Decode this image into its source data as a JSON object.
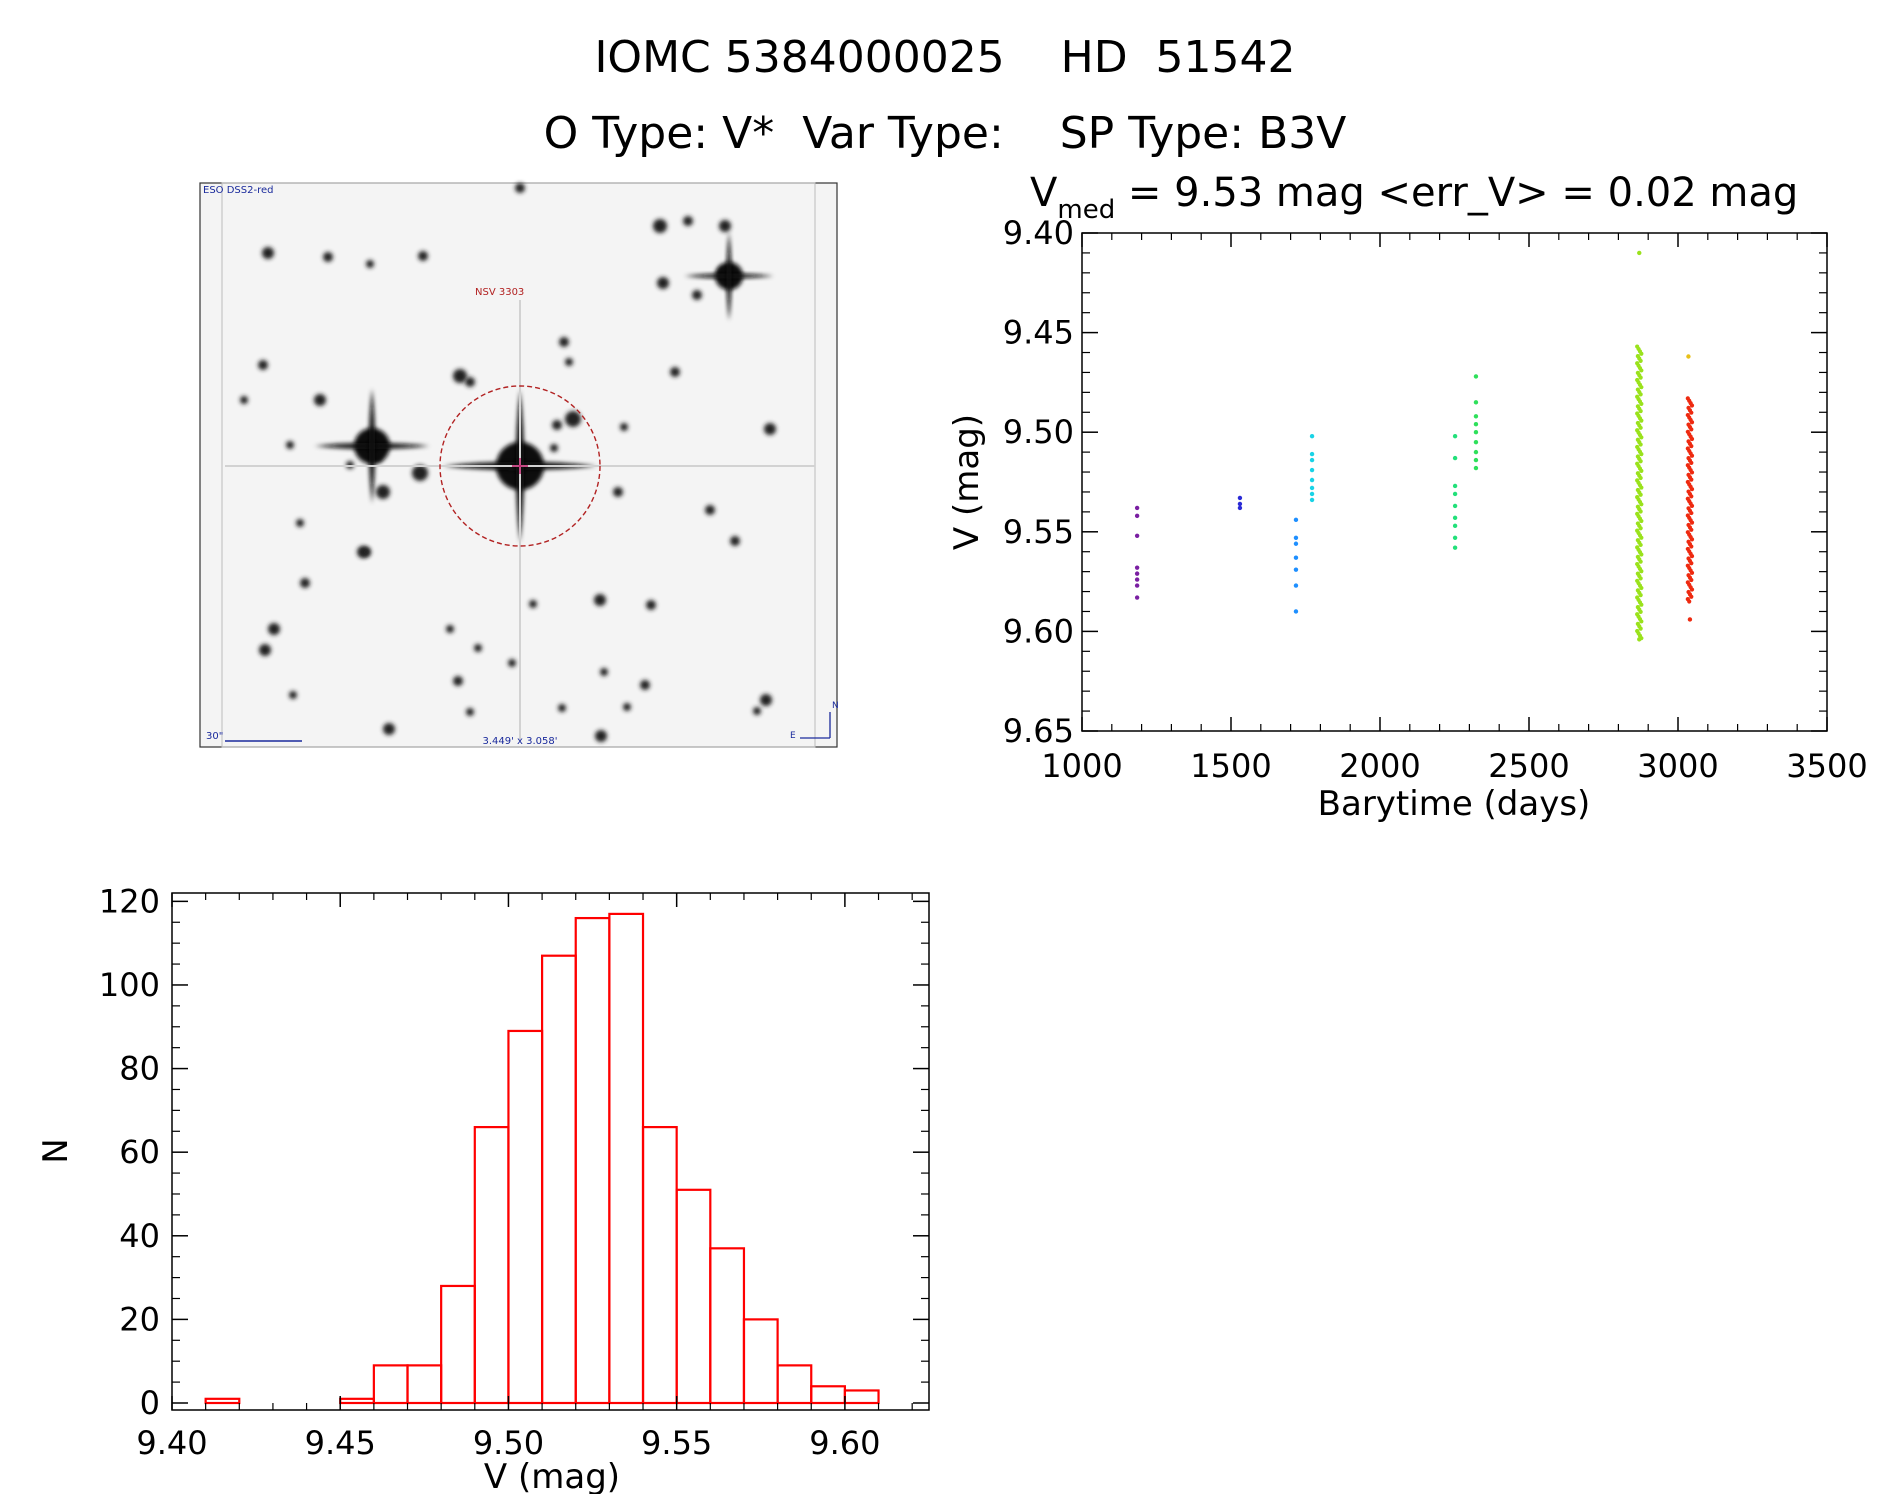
{
  "header": {
    "line1": "IOMC 5384000025    HD  51542",
    "line2": "O Type: V*  Var Type:    SP Type: B3V"
  },
  "finder": {
    "survey_label": "ESO DSS2-red",
    "target_label": "NSV 3303",
    "scale_label": "30\"",
    "fov_label": "3.449' x 3.058'",
    "north_label": "N",
    "east_label": "E"
  },
  "chart_data": [
    {
      "type": "scatter",
      "title_prefix": "V",
      "title_subscript": "med",
      "title_rest": " = 9.53 mag <err_V> = 0.02 mag",
      "xlabel": "Barytime (days)",
      "ylabel": "V (mag)",
      "xlim": [
        1000,
        3500
      ],
      "ylim": [
        9.65,
        9.4
      ],
      "y_inverted": true,
      "xticks": [
        "1000",
        "1500",
        "2000",
        "2500",
        "3000",
        "3500"
      ],
      "yticks": [
        "9.40",
        "9.45",
        "9.50",
        "9.55",
        "9.60",
        "9.65"
      ],
      "series": [
        {
          "color": "#7a1fa2",
          "x": 1185,
          "y": [
            9.538,
            9.542,
            9.552,
            9.568,
            9.571,
            9.574,
            9.577,
            9.583
          ]
        },
        {
          "color": "#2b2bd6",
          "x": 1530,
          "y": [
            9.533,
            9.536,
            9.538
          ]
        },
        {
          "color": "#1e8fff",
          "x": 1718,
          "y": [
            9.544,
            9.553,
            9.556,
            9.563,
            9.569,
            9.577,
            9.59
          ]
        },
        {
          "color": "#19d3e6",
          "x": 1772,
          "y": [
            9.502,
            9.511,
            9.514,
            9.519,
            9.524,
            9.528,
            9.531,
            9.534
          ]
        },
        {
          "color": "#22e07a",
          "x": 2252,
          "y": [
            9.502,
            9.513,
            9.527,
            9.531,
            9.537,
            9.543,
            9.547,
            9.553,
            9.558
          ]
        },
        {
          "color": "#2ee05a",
          "x": 2322,
          "y": [
            9.472,
            9.485,
            9.492,
            9.496,
            9.5,
            9.505,
            9.51,
            9.514,
            9.518
          ]
        },
        {
          "color": "#9ae21c",
          "x": 2870,
          "y": [
            9.41,
            9.604
          ],
          "band": [
            9.457,
            9.604
          ]
        },
        {
          "color": "#ee2a10",
          "x": 3040,
          "y": [
            9.594
          ],
          "band": [
            9.483,
            9.585
          ]
        },
        {
          "color": "#e8c018",
          "x": 3035,
          "y": [
            9.462
          ]
        }
      ]
    },
    {
      "type": "bar",
      "subtype": "histogram",
      "xlabel": "V (mag)",
      "ylabel": "N",
      "xlim": [
        9.4,
        9.625
      ],
      "ylim": [
        0,
        122
      ],
      "xticks": [
        "9.40",
        "9.45",
        "9.50",
        "9.55",
        "9.60"
      ],
      "yticks": [
        "0",
        "20",
        "40",
        "60",
        "80",
        "100",
        "120"
      ],
      "bin_width": 0.01,
      "bin_starts": [
        9.41,
        9.42,
        9.43,
        9.44,
        9.45,
        9.46,
        9.47,
        9.48,
        9.49,
        9.5,
        9.51,
        9.52,
        9.53,
        9.54,
        9.55,
        9.56,
        9.57,
        9.58,
        9.59,
        9.6
      ],
      "values": [
        1,
        0,
        0,
        0,
        1,
        9,
        9,
        28,
        66,
        89,
        107,
        116,
        117,
        66,
        51,
        37,
        20,
        9,
        4,
        3
      ],
      "bar_color": "#ff0000"
    }
  ]
}
